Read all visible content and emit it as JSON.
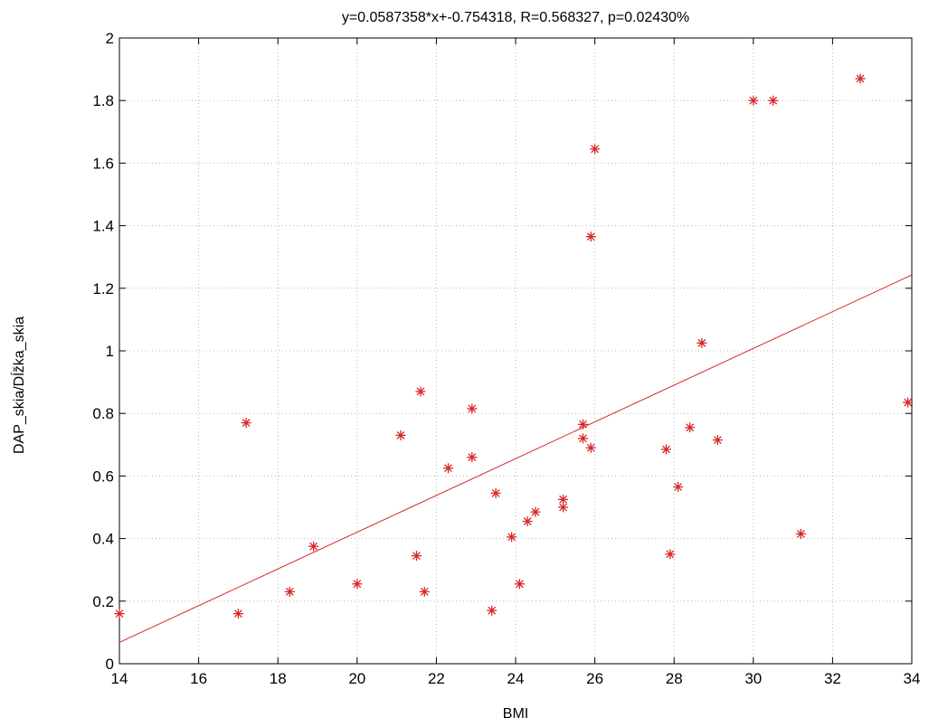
{
  "chart_data": {
    "type": "scatter",
    "title": "y=0.0587358*x+-0.754318, R=0.568327, p=0.02430%",
    "xlabel": "BMI",
    "ylabel": "DAP_skia/Dĺžka_skia",
    "xlim": [
      14,
      34
    ],
    "ylim": [
      0,
      2
    ],
    "x_ticks": [
      14,
      16,
      18,
      20,
      22,
      24,
      26,
      28,
      30,
      32,
      34
    ],
    "y_ticks": [
      0,
      0.2,
      0.4,
      0.6,
      0.8,
      1,
      1.2,
      1.4,
      1.6,
      1.8,
      2
    ],
    "x_tick_labels": [
      "14",
      "16",
      "18",
      "20",
      "22",
      "24",
      "26",
      "28",
      "30",
      "32",
      "34"
    ],
    "y_tick_labels": [
      "0",
      "0.2",
      "0.4",
      "0.6",
      "0.8",
      "1",
      "1.2",
      "1.4",
      "1.6",
      "1.8",
      "2"
    ],
    "grid": true,
    "marker": "asterisk",
    "color": "#d62728",
    "fit_line": {
      "slope": 0.0587358,
      "intercept": -0.754318,
      "x_range": [
        14,
        34
      ]
    },
    "points": [
      {
        "x": 14.0,
        "y": 0.16
      },
      {
        "x": 17.0,
        "y": 0.16
      },
      {
        "x": 17.2,
        "y": 0.77
      },
      {
        "x": 18.3,
        "y": 0.23
      },
      {
        "x": 18.9,
        "y": 0.375
      },
      {
        "x": 20.0,
        "y": 0.255
      },
      {
        "x": 21.1,
        "y": 0.73
      },
      {
        "x": 21.5,
        "y": 0.345
      },
      {
        "x": 21.6,
        "y": 0.87
      },
      {
        "x": 21.7,
        "y": 0.23
      },
      {
        "x": 22.3,
        "y": 0.625
      },
      {
        "x": 22.9,
        "y": 0.815
      },
      {
        "x": 22.9,
        "y": 0.66
      },
      {
        "x": 23.4,
        "y": 0.17
      },
      {
        "x": 23.5,
        "y": 0.545
      },
      {
        "x": 23.9,
        "y": 0.405
      },
      {
        "x": 24.1,
        "y": 0.255
      },
      {
        "x": 24.3,
        "y": 0.455
      },
      {
        "x": 24.5,
        "y": 0.485
      },
      {
        "x": 25.2,
        "y": 0.525
      },
      {
        "x": 25.2,
        "y": 0.5
      },
      {
        "x": 25.7,
        "y": 0.765
      },
      {
        "x": 25.7,
        "y": 0.72
      },
      {
        "x": 25.9,
        "y": 0.69
      },
      {
        "x": 25.9,
        "y": 1.365
      },
      {
        "x": 26.0,
        "y": 1.645
      },
      {
        "x": 27.8,
        "y": 0.685
      },
      {
        "x": 27.9,
        "y": 0.35
      },
      {
        "x": 28.1,
        "y": 0.565
      },
      {
        "x": 28.4,
        "y": 0.755
      },
      {
        "x": 28.7,
        "y": 1.025
      },
      {
        "x": 29.1,
        "y": 0.715
      },
      {
        "x": 30.0,
        "y": 1.8
      },
      {
        "x": 30.5,
        "y": 1.8
      },
      {
        "x": 31.2,
        "y": 0.415
      },
      {
        "x": 32.7,
        "y": 1.87
      },
      {
        "x": 33.9,
        "y": 0.835
      }
    ]
  }
}
